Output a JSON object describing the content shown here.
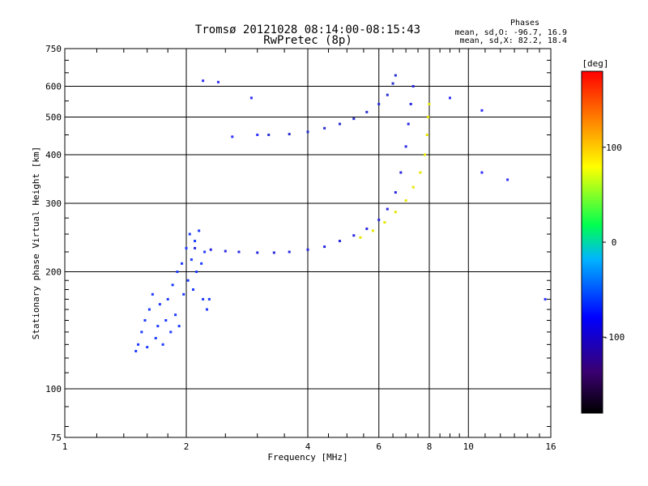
{
  "chart_data": {
    "type": "scatter",
    "title": "Tromsø 20121028 08:14:00-08:15:43",
    "subtitle": "RwPretec (8p)",
    "xlabel": "Frequency [MHz]",
    "ylabel": "Stationary phase Virtual Height [km]",
    "x_scale": "log",
    "y_scale": "log",
    "xlim": [
      1,
      16
    ],
    "ylim": [
      75,
      750
    ],
    "x_ticks": [
      "1",
      "2",
      "4",
      "6",
      "8",
      "10",
      "16"
    ],
    "y_ticks": [
      "750",
      "600",
      "500",
      "400",
      "300",
      "200",
      "100",
      "75"
    ],
    "grid": true,
    "phase_info": {
      "title": "Phases",
      "line_o": "mean, sd,O: -96.7, 16.9",
      "line_x": "mean, sd,X: 82.2, 18.4"
    },
    "colorbar": {
      "label": "[deg]",
      "ticks": [
        "100",
        "0",
        "-100"
      ],
      "range": [
        -180,
        180
      ],
      "colors": [
        "#000000",
        "#3a0070",
        "#0000ff",
        "#00b4ff",
        "#00ff50",
        "#ffff00",
        "#ff8000",
        "#ff0000"
      ]
    },
    "series": [
      {
        "trace": "low-frequency scatter",
        "color": "#1e3cff",
        "points": [
          [
            1.5,
            125
          ],
          [
            1.52,
            130
          ],
          [
            1.55,
            140
          ],
          [
            1.58,
            150
          ],
          [
            1.6,
            128
          ],
          [
            1.62,
            160
          ],
          [
            1.65,
            175
          ],
          [
            1.68,
            135
          ],
          [
            1.7,
            145
          ],
          [
            1.72,
            165
          ],
          [
            1.75,
            130
          ],
          [
            1.78,
            150
          ],
          [
            1.8,
            170
          ],
          [
            1.83,
            140
          ],
          [
            1.85,
            185
          ],
          [
            1.88,
            155
          ],
          [
            1.9,
            200
          ],
          [
            1.92,
            145
          ],
          [
            1.95,
            210
          ],
          [
            1.97,
            175
          ],
          [
            2.0,
            230
          ],
          [
            2.02,
            190
          ],
          [
            2.04,
            250
          ],
          [
            2.06,
            215
          ],
          [
            2.08,
            180
          ],
          [
            2.1,
            240
          ],
          [
            2.12,
            200
          ],
          [
            2.15,
            255
          ],
          [
            2.18,
            210
          ],
          [
            2.2,
            170
          ],
          [
            2.22,
            225
          ],
          [
            2.25,
            160
          ],
          [
            2.28,
            170
          ]
        ]
      },
      {
        "trace": "O-trace lower",
        "color": "#2828e0",
        "points": [
          [
            2.1,
            230
          ],
          [
            2.3,
            228
          ],
          [
            2.5,
            226
          ],
          [
            2.7,
            225
          ],
          [
            3.0,
            224
          ],
          [
            3.3,
            224
          ],
          [
            3.6,
            225
          ],
          [
            4.0,
            228
          ],
          [
            4.4,
            232
          ],
          [
            4.8,
            240
          ],
          [
            5.2,
            248
          ],
          [
            5.6,
            258
          ],
          [
            6.0,
            272
          ],
          [
            6.3,
            290
          ],
          [
            6.6,
            320
          ],
          [
            6.8,
            360
          ],
          [
            7.0,
            420
          ],
          [
            7.1,
            480
          ],
          [
            7.2,
            540
          ],
          [
            7.3,
            600
          ]
        ]
      },
      {
        "trace": "O-trace upper",
        "color": "#2830d0",
        "points": [
          [
            3.2,
            450
          ],
          [
            3.6,
            452
          ],
          [
            4.0,
            458
          ],
          [
            4.4,
            468
          ],
          [
            4.8,
            480
          ],
          [
            5.2,
            495
          ],
          [
            5.6,
            515
          ],
          [
            6.0,
            540
          ],
          [
            6.3,
            570
          ],
          [
            6.5,
            610
          ],
          [
            6.6,
            640
          ]
        ]
      },
      {
        "trace": "X-trace",
        "color": "#e6e600",
        "points": [
          [
            5.4,
            245
          ],
          [
            5.8,
            255
          ],
          [
            6.2,
            268
          ],
          [
            6.6,
            285
          ],
          [
            7.0,
            305
          ],
          [
            7.3,
            330
          ],
          [
            7.6,
            360
          ],
          [
            7.8,
            400
          ],
          [
            7.9,
            450
          ],
          [
            7.95,
            500
          ],
          [
            8.0,
            540
          ]
        ]
      },
      {
        "trace": "sparse points",
        "color": "#3030ff",
        "points": [
          [
            2.2,
            620
          ],
          [
            2.4,
            615
          ],
          [
            2.6,
            445
          ],
          [
            2.9,
            560
          ],
          [
            3.0,
            450
          ],
          [
            9.0,
            560
          ],
          [
            10.8,
            520
          ],
          [
            10.8,
            360
          ],
          [
            12.5,
            345
          ],
          [
            15.5,
            170
          ]
        ]
      }
    ]
  }
}
